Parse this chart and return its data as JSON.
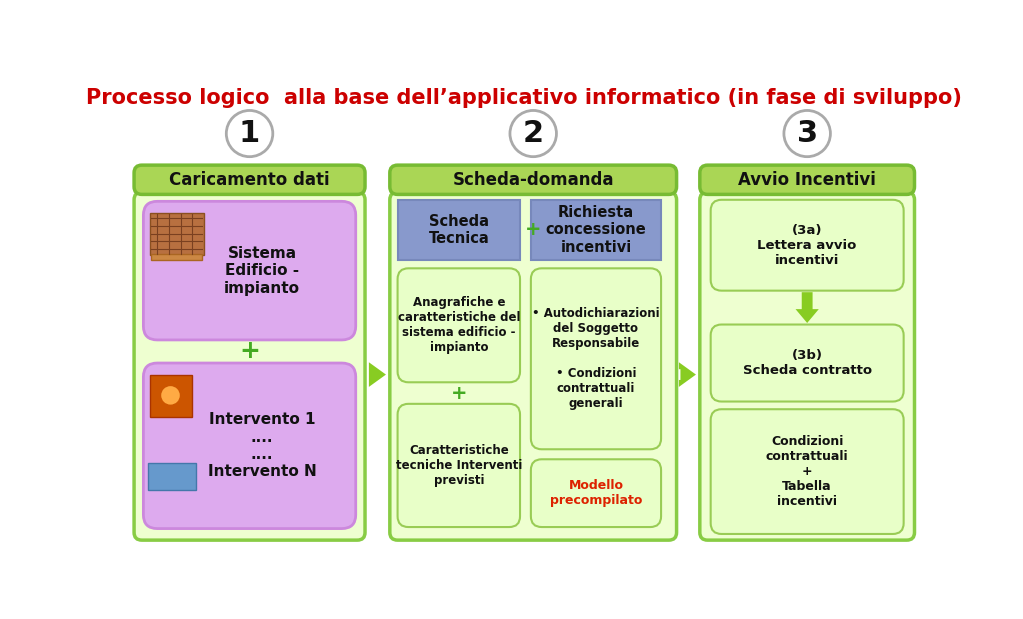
{
  "title": "Processo logico  alla base dell’applicativo informatico (in fase di sviluppo)",
  "title_color": "#cc0000",
  "title_fontsize": 15,
  "bg_color": "#ffffff",
  "col1_header": "Caricamento dati",
  "col2_header": "Scheda-domanda",
  "col3_header": "Avvio Incentivi",
  "header_bg": "#aad655",
  "header_border": "#77bb33",
  "outer_box_bg": "#eeffd0",
  "outer_box_border": "#88cc44",
  "purple_box_bg": "#8899cc",
  "purple_box_border": "#7788bb",
  "light_green_box_bg": "#e8ffc8",
  "light_green_box_border": "#99cc55",
  "light_purple_box_bg": "#ddaaee",
  "light_purple_box_border": "#cc88dd",
  "circle_edge": "#aaaaaa",
  "arrow_color": "#88cc22",
  "plus_color": "#44aa22",
  "step1_box1_text": "Sistema\nEdificio -\nimpianto",
  "step1_box2_text": "Intervento 1\n....\n....\nIntervento N",
  "step2_left_header": "Scheda\nTecnica",
  "step2_right_header": "Richiesta\nconcessione\nincentivi",
  "step2_left_box1": "Anagrafiche e\ncaratteristiche del\nsistema edificio -\nimpianto",
  "step2_left_box2": "Caratteristiche\ntecniche Interventi\nprevisti",
  "step2_right_box1_line1": "• Autodichiarazioni",
  "step2_right_box1_line2": "del Soggetto\nResponsabile",
  "step2_right_box1_line3": "• Condizioni\ncontrattuali\ngenerali",
  "step2_right_box2": "Modello\nprecompilato",
  "step2_right_box2_color": "#dd2200",
  "step3_box1": "(3a)\nLettera avvio\nincentivi",
  "step3_box2": "(3b)\nScheda contratto",
  "step3_box3": "Condizioni\ncontrattuali\n+\nTabella\nincentivi",
  "img1_color": "#8B4513",
  "img2a_color": "#cc5500",
  "img2b_color": "#4488cc"
}
